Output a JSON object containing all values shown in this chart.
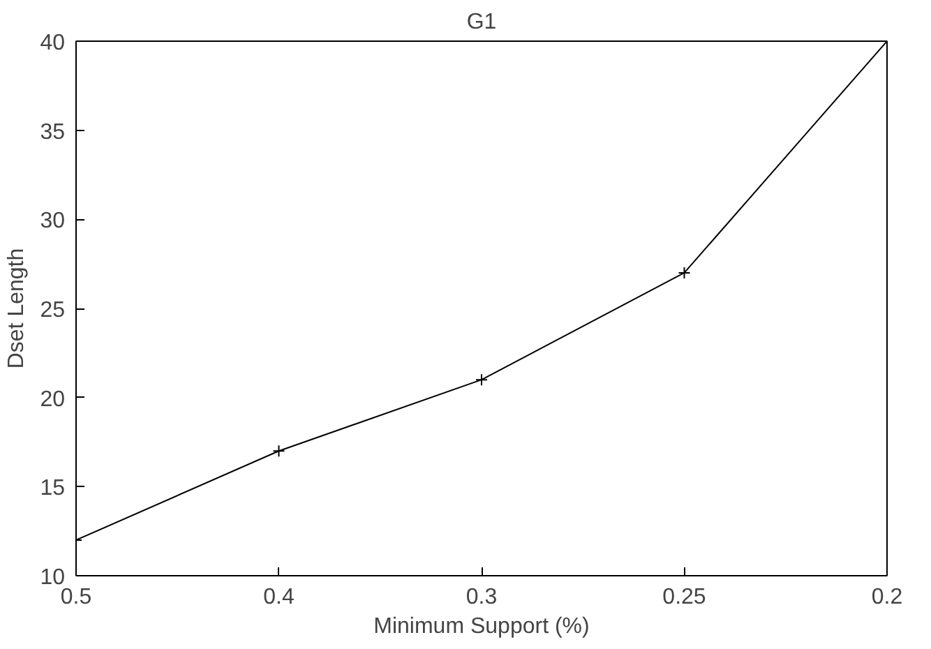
{
  "chart_data": {
    "type": "line",
    "title": "G1",
    "xlabel": "Minimum Support (%)",
    "ylabel": "Dset Length",
    "categories": [
      "0.5",
      "0.4",
      "0.3",
      "0.25",
      "0.2"
    ],
    "series": [
      {
        "color": "#000000",
        "values": [
          12,
          17,
          21,
          27,
          40
        ]
      }
    ],
    "ylim": [
      10,
      40
    ],
    "yticks": [
      10,
      15,
      20,
      25,
      30,
      35,
      40
    ],
    "grid": false,
    "marker": "cross",
    "line_style": "solid"
  }
}
